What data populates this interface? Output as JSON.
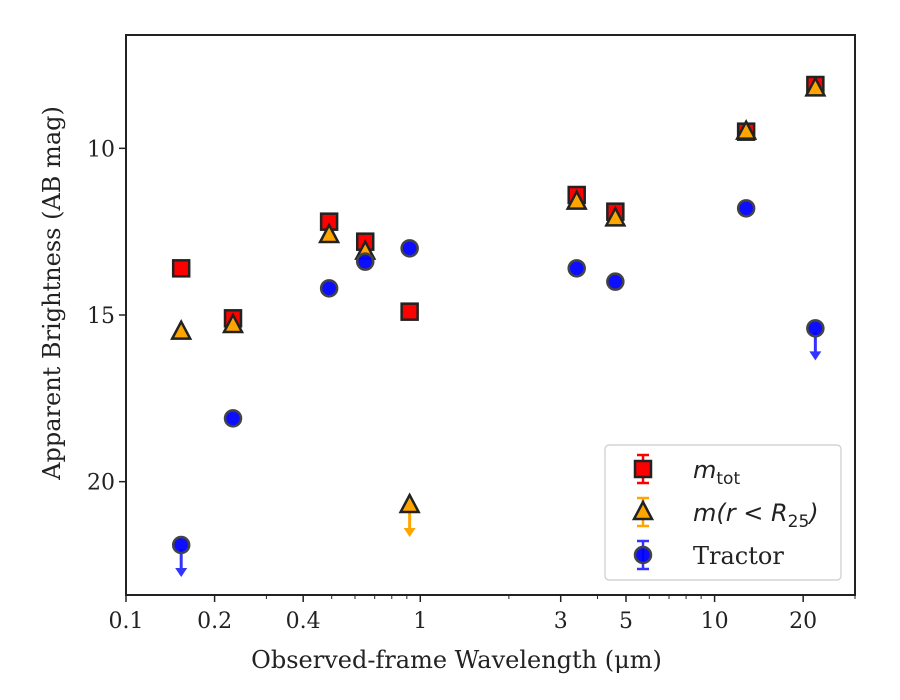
{
  "chart_data": {
    "type": "scatter",
    "xscale": "log",
    "yscale": "linear",
    "y_inverted": true,
    "xlim": [
      0.1,
      30
    ],
    "ylim": [
      23.4,
      6.6
    ],
    "xlabel": "Observed-frame Wavelength (μm)",
    "ylabel": "Apparent Brightness (AB mag)",
    "x_ticks": [
      0.1,
      0.2,
      0.4,
      1,
      3,
      5,
      10,
      20
    ],
    "x_tick_labels": [
      "0.1",
      "0.2",
      "0.4",
      "1",
      "3",
      "5",
      "10",
      "20"
    ],
    "y_ticks": [
      10,
      15,
      20
    ],
    "y_tick_labels": [
      "10",
      "15",
      "20"
    ],
    "grid": false,
    "legend_position": "lower-right",
    "series": [
      {
        "name": "m_tot",
        "legend_main": "m",
        "legend_sub": "tot",
        "marker": "square",
        "color": "#ff0000",
        "errorbar_color": "#ff0000",
        "points": [
          {
            "x": 0.154,
            "y": 13.6
          },
          {
            "x": 0.231,
            "y": 15.1
          },
          {
            "x": 0.49,
            "y": 12.2
          },
          {
            "x": 0.65,
            "y": 12.8
          },
          {
            "x": 0.92,
            "y": 14.9
          },
          {
            "x": 3.4,
            "y": 11.4
          },
          {
            "x": 4.6,
            "y": 11.9
          },
          {
            "x": 12.8,
            "y": 9.5
          },
          {
            "x": 22.0,
            "y": 8.1
          }
        ]
      },
      {
        "name": "m(r < R25)",
        "legend_main": "m(r < R",
        "legend_sub": "25",
        "legend_close": ")",
        "marker": "triangle",
        "color": "#ffa500",
        "errorbar_color": "#ffa500",
        "points": [
          {
            "x": 0.154,
            "y": 15.5
          },
          {
            "x": 0.231,
            "y": 15.3
          },
          {
            "x": 0.49,
            "y": 12.6
          },
          {
            "x": 0.65,
            "y": 13.1
          },
          {
            "x": 0.92,
            "y": 20.7,
            "upper_limit": true
          },
          {
            "x": 3.4,
            "y": 11.6
          },
          {
            "x": 4.6,
            "y": 12.1
          },
          {
            "x": 12.8,
            "y": 9.5
          },
          {
            "x": 22.0,
            "y": 8.2
          }
        ]
      },
      {
        "name": "Tractor",
        "legend_main": "Tractor",
        "marker": "circle",
        "color": "#0000ff",
        "errorbar_color": "#3333ff",
        "points": [
          {
            "x": 0.154,
            "y": 21.9,
            "upper_limit": true
          },
          {
            "x": 0.231,
            "y": 18.1
          },
          {
            "x": 0.49,
            "y": 14.2
          },
          {
            "x": 0.65,
            "y": 13.4
          },
          {
            "x": 0.92,
            "y": 13.0
          },
          {
            "x": 3.4,
            "y": 13.6
          },
          {
            "x": 4.6,
            "y": 14.0
          },
          {
            "x": 12.8,
            "y": 11.8
          },
          {
            "x": 22.0,
            "y": 15.4,
            "upper_limit": true
          }
        ]
      }
    ]
  }
}
